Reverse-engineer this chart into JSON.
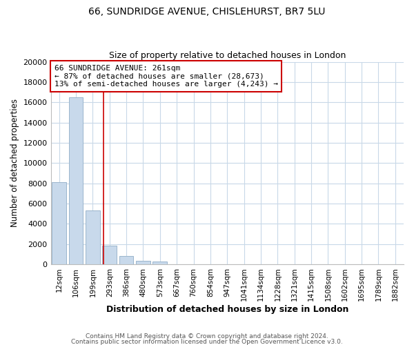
{
  "title": "66, SUNDRIDGE AVENUE, CHISLEHURST, BR7 5LU",
  "subtitle": "Size of property relative to detached houses in London",
  "xlabel": "Distribution of detached houses by size in London",
  "ylabel": "Number of detached properties",
  "bar_labels": [
    "12sqm",
    "106sqm",
    "199sqm",
    "293sqm",
    "386sqm",
    "480sqm",
    "573sqm",
    "667sqm",
    "760sqm",
    "854sqm",
    "947sqm",
    "1041sqm",
    "1134sqm",
    "1228sqm",
    "1321sqm",
    "1415sqm",
    "1508sqm",
    "1602sqm",
    "1695sqm",
    "1789sqm",
    "1882sqm"
  ],
  "bar_values": [
    8100,
    16500,
    5300,
    1800,
    800,
    300,
    250,
    0,
    0,
    0,
    0,
    0,
    0,
    0,
    0,
    0,
    0,
    0,
    0,
    0,
    0
  ],
  "bar_color": "#c8d9eb",
  "bar_edge_color": "#9ab5cc",
  "property_line_x": 2.62,
  "annotation_line1": "66 SUNDRIDGE AVENUE: 261sqm",
  "annotation_line2": "← 87% of detached houses are smaller (28,673)",
  "annotation_line3": "13% of semi-detached houses are larger (4,243) →",
  "annotation_box_color": "#ffffff",
  "annotation_border_color": "#cc0000",
  "ylim": [
    0,
    20000
  ],
  "yticks": [
    0,
    2000,
    4000,
    6000,
    8000,
    10000,
    12000,
    14000,
    16000,
    18000,
    20000
  ],
  "grid_color": "#c8d8e8",
  "background_color": "#ffffff",
  "footer_line1": "Contains HM Land Registry data © Crown copyright and database right 2024.",
  "footer_line2": "Contains public sector information licensed under the Open Government Licence v3.0."
}
